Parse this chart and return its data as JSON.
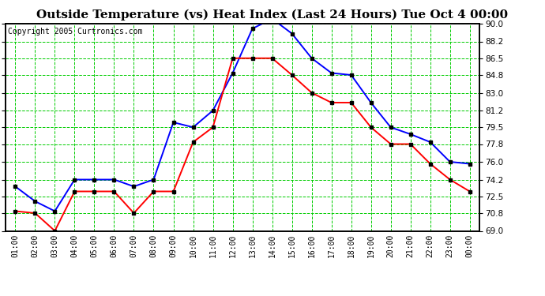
{
  "title": "Outside Temperature (vs) Heat Index (Last 24 Hours) Tue Oct 4 00:00",
  "copyright": "Copyright 2005 Curtronics.com",
  "x_labels": [
    "01:00",
    "02:00",
    "03:00",
    "04:00",
    "05:00",
    "06:00",
    "07:00",
    "08:00",
    "09:00",
    "10:00",
    "11:00",
    "12:00",
    "13:00",
    "14:00",
    "15:00",
    "16:00",
    "17:00",
    "18:00",
    "19:00",
    "20:00",
    "21:00",
    "22:00",
    "23:00",
    "00:00"
  ],
  "blue_data": [
    73.5,
    72.0,
    71.0,
    74.2,
    74.2,
    74.2,
    73.5,
    74.2,
    80.0,
    79.5,
    81.2,
    85.0,
    89.5,
    90.5,
    89.0,
    86.5,
    85.0,
    84.8,
    82.0,
    79.5,
    78.8,
    78.0,
    76.0,
    75.8
  ],
  "red_data": [
    71.0,
    70.8,
    69.0,
    73.0,
    73.0,
    73.0,
    70.8,
    73.0,
    73.0,
    78.0,
    79.5,
    86.5,
    86.5,
    86.5,
    84.8,
    83.0,
    82.0,
    82.0,
    79.5,
    77.8,
    77.8,
    75.8,
    74.2,
    73.0
  ],
  "ylim": [
    69.0,
    90.0
  ],
  "yticks": [
    69.0,
    70.8,
    72.5,
    74.2,
    76.0,
    77.8,
    79.5,
    81.2,
    83.0,
    84.8,
    86.5,
    88.2,
    90.0
  ],
  "blue_color": "#0000ff",
  "red_color": "#ff0000",
  "bg_color": "#ffffff",
  "grid_color": "#00cc00",
  "border_color": "#000000",
  "title_color": "#000000",
  "title_fontsize": 11,
  "copyright_fontsize": 7,
  "tick_fontsize": 7.5,
  "xtick_fontsize": 7
}
